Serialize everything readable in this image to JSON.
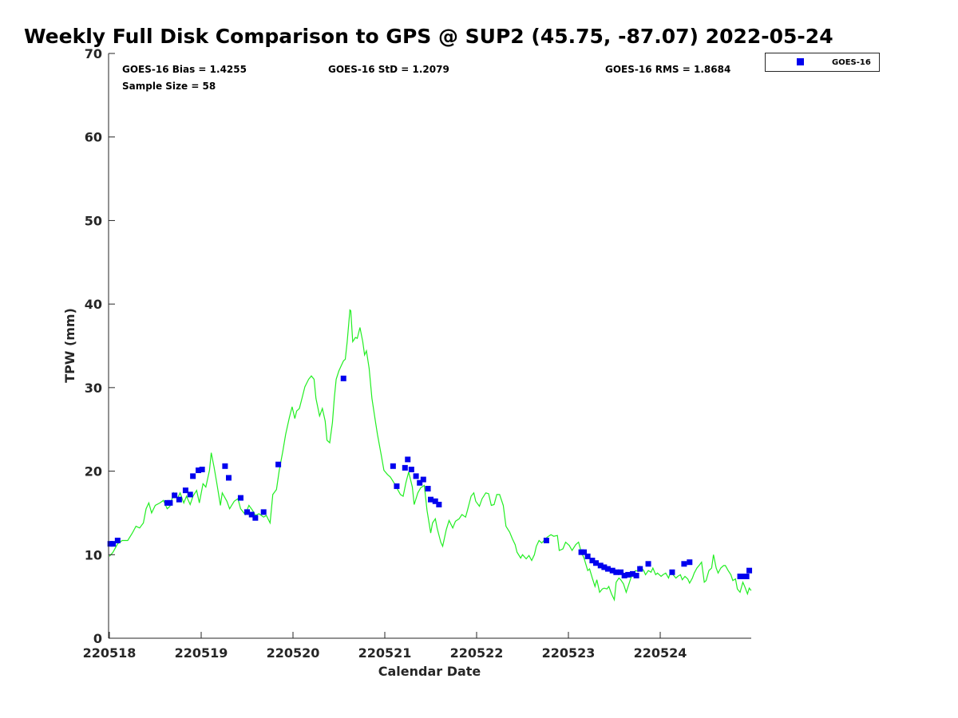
{
  "chart_data": {
    "type": "scatter",
    "title": "Weekly Full Disk Comparison to GPS @ SUP2 (45.75, -87.07) 2022-05-24",
    "xlabel": "Calendar Date",
    "ylabel": "TPW (mm)",
    "xlim": [
      0,
      7
    ],
    "ylim": [
      0,
      70
    ],
    "x_ticks": [
      0,
      1,
      2,
      3,
      4,
      5,
      6
    ],
    "x_tick_labels": [
      "220518",
      "220519",
      "220520",
      "220521",
      "220522",
      "220523",
      "220524"
    ],
    "y_ticks": [
      0,
      10,
      20,
      30,
      40,
      50,
      60,
      70
    ],
    "y_tick_labels": [
      "0",
      "10",
      "20",
      "30",
      "40",
      "50",
      "60",
      "70"
    ],
    "grid": false,
    "legend": {
      "position": "outside-top-right",
      "entries": [
        "GOES-16"
      ]
    },
    "stats": {
      "bias": "GOES-16 Bias = 1.4255",
      "std": "GOES-16 StD = 1.2079",
      "rms": "GOES-16 RMS = 1.8684",
      "sample": "Sample Size = 58"
    },
    "colors": {
      "goes": "#0000ee",
      "gps": "#22ee22"
    },
    "series": [
      {
        "name": "GOES-16",
        "kind": "scatter",
        "points": [
          [
            0.01,
            11.3
          ],
          [
            0.04,
            11.3
          ],
          [
            0.09,
            11.7
          ],
          [
            0.63,
            16.2
          ],
          [
            0.66,
            16.2
          ],
          [
            0.71,
            17.1
          ],
          [
            0.76,
            16.6
          ],
          [
            0.83,
            17.7
          ],
          [
            0.88,
            17.2
          ],
          [
            0.91,
            19.4
          ],
          [
            0.97,
            20.1
          ],
          [
            1.01,
            20.2
          ],
          [
            1.26,
            20.6
          ],
          [
            1.3,
            19.2
          ],
          [
            1.43,
            16.8
          ],
          [
            1.5,
            15.1
          ],
          [
            1.55,
            14.8
          ],
          [
            1.59,
            14.4
          ],
          [
            1.68,
            15.1
          ],
          [
            1.84,
            20.8
          ],
          [
            2.55,
            31.1
          ],
          [
            3.09,
            20.6
          ],
          [
            3.13,
            18.2
          ],
          [
            3.22,
            20.4
          ],
          [
            3.25,
            21.4
          ],
          [
            3.29,
            20.2
          ],
          [
            3.34,
            19.4
          ],
          [
            3.38,
            18.6
          ],
          [
            3.42,
            19.0
          ],
          [
            3.47,
            17.9
          ],
          [
            3.5,
            16.6
          ],
          [
            3.55,
            16.4
          ],
          [
            3.59,
            16.0
          ],
          [
            4.76,
            11.7
          ],
          [
            5.14,
            10.3
          ],
          [
            5.17,
            10.3
          ],
          [
            5.21,
            9.8
          ],
          [
            5.26,
            9.3
          ],
          [
            5.3,
            9.0
          ],
          [
            5.35,
            8.7
          ],
          [
            5.39,
            8.5
          ],
          [
            5.43,
            8.3
          ],
          [
            5.48,
            8.1
          ],
          [
            5.52,
            7.9
          ],
          [
            5.57,
            7.9
          ],
          [
            5.61,
            7.5
          ],
          [
            5.65,
            7.6
          ],
          [
            5.7,
            7.7
          ],
          [
            5.74,
            7.5
          ],
          [
            5.78,
            8.3
          ],
          [
            5.87,
            8.9
          ],
          [
            6.13,
            7.9
          ],
          [
            6.26,
            8.9
          ],
          [
            6.32,
            9.1
          ],
          [
            6.87,
            7.4
          ],
          [
            6.9,
            7.4
          ],
          [
            6.94,
            7.4
          ],
          [
            6.97,
            8.1
          ]
        ]
      },
      {
        "name": "GPS",
        "kind": "line",
        "points": [
          [
            0.0,
            9.8
          ],
          [
            0.04,
            10.3
          ],
          [
            0.09,
            11.3
          ],
          [
            0.14,
            11.7
          ],
          [
            0.2,
            11.7
          ],
          [
            0.25,
            12.6
          ],
          [
            0.29,
            13.4
          ],
          [
            0.33,
            13.2
          ],
          [
            0.37,
            13.8
          ],
          [
            0.4,
            15.5
          ],
          [
            0.43,
            16.2
          ],
          [
            0.46,
            15.0
          ],
          [
            0.5,
            15.9
          ],
          [
            0.55,
            16.2
          ],
          [
            0.59,
            16.5
          ],
          [
            0.63,
            15.5
          ],
          [
            0.66,
            15.8
          ],
          [
            0.7,
            17.4
          ],
          [
            0.74,
            16.7
          ],
          [
            0.77,
            17.4
          ],
          [
            0.81,
            16.2
          ],
          [
            0.84,
            17.0
          ],
          [
            0.88,
            16.0
          ],
          [
            0.91,
            17.0
          ],
          [
            0.95,
            17.7
          ],
          [
            0.98,
            16.2
          ],
          [
            1.02,
            18.5
          ],
          [
            1.05,
            18.1
          ],
          [
            1.09,
            20.1
          ],
          [
            1.11,
            22.2
          ],
          [
            1.14,
            20.5
          ],
          [
            1.17,
            18.6
          ],
          [
            1.21,
            15.9
          ],
          [
            1.23,
            17.4
          ],
          [
            1.28,
            16.4
          ],
          [
            1.31,
            15.5
          ],
          [
            1.36,
            16.4
          ],
          [
            1.4,
            16.7
          ],
          [
            1.43,
            15.5
          ],
          [
            1.48,
            14.8
          ],
          [
            1.52,
            15.9
          ],
          [
            1.56,
            15.3
          ],
          [
            1.59,
            14.7
          ],
          [
            1.63,
            14.9
          ],
          [
            1.68,
            14.5
          ],
          [
            1.71,
            14.7
          ],
          [
            1.75,
            13.8
          ],
          [
            1.78,
            17.2
          ],
          [
            1.82,
            17.8
          ],
          [
            1.85,
            20.1
          ],
          [
            1.89,
            22.4
          ],
          [
            1.92,
            24.4
          ],
          [
            1.96,
            26.4
          ],
          [
            1.99,
            27.7
          ],
          [
            2.02,
            26.3
          ],
          [
            2.04,
            27.2
          ],
          [
            2.07,
            27.5
          ],
          [
            2.1,
            28.8
          ],
          [
            2.13,
            30.1
          ],
          [
            2.17,
            31.0
          ],
          [
            2.2,
            31.4
          ],
          [
            2.23,
            31.0
          ],
          [
            2.25,
            28.7
          ],
          [
            2.29,
            26.6
          ],
          [
            2.32,
            27.5
          ],
          [
            2.35,
            26.0
          ],
          [
            2.37,
            23.7
          ],
          [
            2.4,
            23.4
          ],
          [
            2.43,
            25.8
          ],
          [
            2.45,
            28.8
          ],
          [
            2.47,
            31.0
          ],
          [
            2.5,
            32.0
          ],
          [
            2.52,
            32.5
          ],
          [
            2.55,
            33.2
          ],
          [
            2.57,
            33.4
          ],
          [
            2.59,
            35.5
          ],
          [
            2.62,
            39.3
          ],
          [
            2.63,
            39.2
          ],
          [
            2.65,
            35.5
          ],
          [
            2.68,
            36.0
          ],
          [
            2.7,
            35.9
          ],
          [
            2.73,
            37.2
          ],
          [
            2.76,
            35.5
          ],
          [
            2.78,
            33.9
          ],
          [
            2.8,
            34.4
          ],
          [
            2.83,
            32.3
          ],
          [
            2.86,
            28.7
          ],
          [
            2.9,
            25.8
          ],
          [
            2.92,
            24.4
          ],
          [
            2.96,
            22.0
          ],
          [
            2.99,
            20.1
          ],
          [
            3.03,
            19.6
          ],
          [
            3.06,
            19.3
          ],
          [
            3.1,
            18.6
          ],
          [
            3.13,
            18.0
          ],
          [
            3.17,
            17.2
          ],
          [
            3.2,
            17.0
          ],
          [
            3.23,
            18.6
          ],
          [
            3.26,
            19.9
          ],
          [
            3.3,
            18.1
          ],
          [
            3.32,
            16.0
          ],
          [
            3.36,
            17.4
          ],
          [
            3.39,
            18.0
          ],
          [
            3.43,
            18.3
          ],
          [
            3.46,
            15.3
          ],
          [
            3.5,
            12.6
          ],
          [
            3.52,
            13.8
          ],
          [
            3.55,
            14.3
          ],
          [
            3.57,
            13.2
          ],
          [
            3.61,
            11.5
          ],
          [
            3.63,
            11.0
          ],
          [
            3.67,
            13.0
          ],
          [
            3.7,
            14.1
          ],
          [
            3.74,
            13.2
          ],
          [
            3.77,
            14.0
          ],
          [
            3.81,
            14.3
          ],
          [
            3.84,
            14.8
          ],
          [
            3.88,
            14.5
          ],
          [
            3.9,
            15.3
          ],
          [
            3.94,
            17.0
          ],
          [
            3.97,
            17.4
          ],
          [
            3.99,
            16.4
          ],
          [
            4.03,
            15.8
          ],
          [
            4.06,
            16.7
          ],
          [
            4.1,
            17.4
          ],
          [
            4.13,
            17.3
          ],
          [
            4.16,
            15.9
          ],
          [
            4.19,
            16.0
          ],
          [
            4.22,
            17.2
          ],
          [
            4.25,
            17.2
          ],
          [
            4.29,
            15.9
          ],
          [
            4.32,
            13.4
          ],
          [
            4.36,
            12.7
          ],
          [
            4.39,
            11.9
          ],
          [
            4.42,
            11.2
          ],
          [
            4.44,
            10.3
          ],
          [
            4.48,
            9.6
          ],
          [
            4.5,
            10.0
          ],
          [
            4.54,
            9.5
          ],
          [
            4.57,
            9.9
          ],
          [
            4.6,
            9.3
          ],
          [
            4.63,
            10.0
          ],
          [
            4.65,
            11.0
          ],
          [
            4.68,
            11.7
          ],
          [
            4.71,
            11.4
          ],
          [
            4.75,
            11.9
          ],
          [
            4.77,
            12.1
          ],
          [
            4.81,
            12.4
          ],
          [
            4.84,
            12.2
          ],
          [
            4.88,
            12.3
          ],
          [
            4.9,
            10.5
          ],
          [
            4.94,
            10.7
          ],
          [
            4.97,
            11.5
          ],
          [
            5.01,
            11.1
          ],
          [
            5.04,
            10.5
          ],
          [
            5.08,
            11.2
          ],
          [
            5.11,
            11.5
          ],
          [
            5.14,
            10.3
          ],
          [
            5.17,
            9.6
          ],
          [
            5.21,
            8.1
          ],
          [
            5.23,
            8.3
          ],
          [
            5.26,
            7.2
          ],
          [
            5.29,
            6.2
          ],
          [
            5.31,
            7.0
          ],
          [
            5.34,
            5.5
          ],
          [
            5.37,
            5.9
          ],
          [
            5.39,
            6.0
          ],
          [
            5.42,
            5.9
          ],
          [
            5.44,
            6.2
          ],
          [
            5.47,
            5.3
          ],
          [
            5.5,
            4.6
          ],
          [
            5.52,
            6.7
          ],
          [
            5.55,
            7.2
          ],
          [
            5.57,
            7.0
          ],
          [
            5.6,
            6.5
          ],
          [
            5.63,
            5.5
          ],
          [
            5.65,
            6.2
          ],
          [
            5.68,
            7.2
          ],
          [
            5.7,
            7.6
          ],
          [
            5.73,
            8.1
          ],
          [
            5.76,
            8.0
          ],
          [
            5.78,
            8.6
          ],
          [
            5.82,
            8.1
          ],
          [
            5.84,
            7.6
          ],
          [
            5.87,
            8.1
          ],
          [
            5.9,
            7.9
          ],
          [
            5.92,
            8.4
          ],
          [
            5.95,
            7.6
          ],
          [
            5.97,
            7.8
          ],
          [
            6.01,
            7.4
          ],
          [
            6.03,
            7.6
          ],
          [
            6.06,
            7.8
          ],
          [
            6.09,
            7.2
          ],
          [
            6.11,
            7.8
          ],
          [
            6.14,
            7.6
          ],
          [
            6.17,
            7.2
          ],
          [
            6.19,
            7.4
          ],
          [
            6.22,
            7.6
          ],
          [
            6.24,
            7.0
          ],
          [
            6.27,
            7.4
          ],
          [
            6.3,
            7.1
          ],
          [
            6.32,
            6.6
          ],
          [
            6.35,
            7.2
          ],
          [
            6.37,
            7.8
          ],
          [
            6.4,
            8.4
          ],
          [
            6.43,
            8.8
          ],
          [
            6.45,
            9.1
          ],
          [
            6.48,
            6.7
          ],
          [
            6.5,
            6.9
          ],
          [
            6.53,
            8.1
          ],
          [
            6.56,
            8.4
          ],
          [
            6.58,
            10.0
          ],
          [
            6.61,
            8.4
          ],
          [
            6.63,
            7.8
          ],
          [
            6.66,
            8.4
          ],
          [
            6.69,
            8.7
          ],
          [
            6.71,
            8.7
          ],
          [
            6.74,
            8.1
          ],
          [
            6.77,
            7.6
          ],
          [
            6.79,
            6.9
          ],
          [
            6.82,
            7.1
          ],
          [
            6.84,
            5.9
          ],
          [
            6.87,
            5.5
          ],
          [
            6.9,
            6.7
          ],
          [
            6.92,
            6.2
          ],
          [
            6.95,
            5.3
          ],
          [
            6.97,
            6.0
          ],
          [
            6.99,
            5.7
          ]
        ]
      }
    ]
  }
}
